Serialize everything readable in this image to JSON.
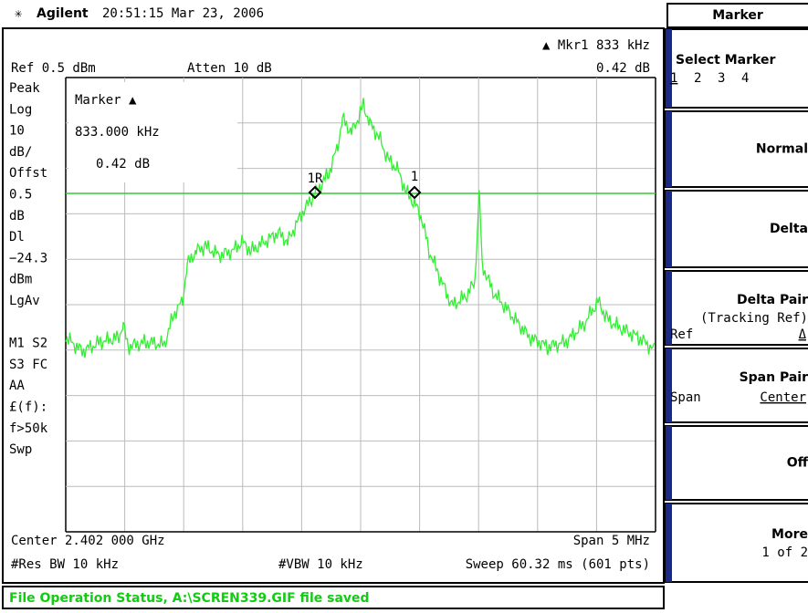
{
  "header": {
    "brand": "Agilent",
    "timestamp": "20:51:15  Mar 23, 2006",
    "menu_title": "Marker"
  },
  "screen": {
    "ref": "Ref 0.5 dBm",
    "atten": "Atten 10 dB",
    "marker_readout": "▲ Mkr1  833 kHz",
    "marker_value": "0.42 dB",
    "left_labels": [
      "Peak",
      "Log",
      "10",
      "dB/",
      "Offst",
      "0.5",
      "dB",
      "Dl",
      "−24.3",
      "dBm",
      "LgAv",
      "",
      "M1  S2",
      "S3  FC",
      "AA",
      "£(f):",
      "f>50k",
      "Swp"
    ],
    "marker_box": {
      "title": "Marker ▲",
      "freq": "833.000 kHz",
      "value": "0.42 dB"
    },
    "marker_labels": {
      "ref": "1R",
      "delta": "1"
    },
    "center": "Center 2.402 000 GHz",
    "span": "Span 5 MHz",
    "res_bw": "#Res BW 10 kHz",
    "vbw": "#VBW 10 kHz",
    "sweep": "Sweep 60.32 ms (601 pts)"
  },
  "softkeys": [
    {
      "label": "Select Marker",
      "sub": [
        "1",
        "2",
        "3",
        "4"
      ]
    },
    {
      "label": "Normal"
    },
    {
      "label": "Delta"
    },
    {
      "label": "Delta Pair",
      "sub": [
        "(Tracking Ref)"
      ],
      "left": "Ref",
      "right": "Δ"
    },
    {
      "label": "Span Pair",
      "left": "Span",
      "right": "Center"
    },
    {
      "label": "Off"
    },
    {
      "label": "More",
      "sub": [
        "1 of 2"
      ]
    }
  ],
  "status": "File Operation Status, A:\\SCREN339.GIF file saved"
}
